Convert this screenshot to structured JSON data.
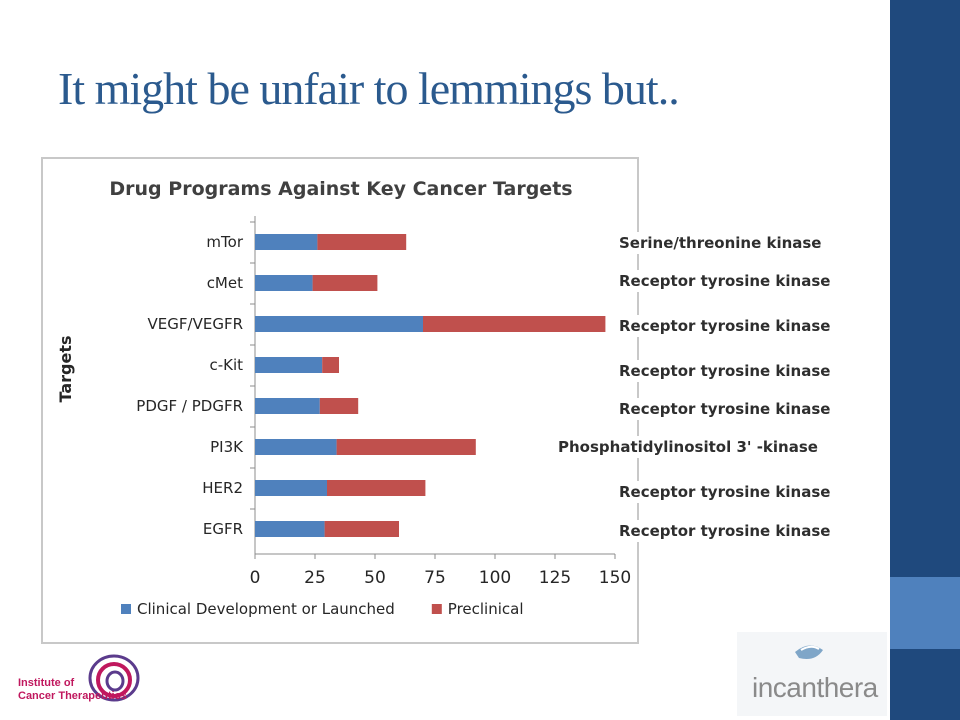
{
  "slide": {
    "title": "It might be unfair to lemmings but..",
    "annotations": [
      "Serine/threonine kinase",
      "Receptor tyrosine kinase",
      "Receptor tyrosine kinase",
      "Receptor tyrosine kinase",
      "Receptor tyrosine kinase",
      "Phosphatidylinositol 3' -kinase",
      "Receptor tyrosine kinase",
      "Receptor tyrosine kinase"
    ],
    "logo_left_lines": [
      "Institute of",
      "Cancer Therapeutics"
    ],
    "logo_right": "incanthera"
  },
  "colors": {
    "brand_dark": "#1f497d",
    "brand_light": "#4f81bd",
    "series_clinical": "#4f81bd",
    "series_preclinical": "#c0504d"
  },
  "chart_data": {
    "type": "bar",
    "orientation": "horizontal",
    "stacked": true,
    "title": "Drug Programs Against Key Cancer Targets",
    "xlabel": "",
    "ylabel": "Targets",
    "categories": [
      "mTor",
      "cMet",
      "VEGF/VEGFR",
      "c-Kit",
      "PDGF / PDGFR",
      "PI3K",
      "HER2",
      "EGFR"
    ],
    "series": [
      {
        "name": "Clinical Development or Launched",
        "values": [
          26,
          24,
          70,
          28,
          27,
          34,
          30,
          29
        ]
      },
      {
        "name": "Preclinical",
        "values": [
          37,
          27,
          76,
          7,
          16,
          58,
          41,
          31
        ]
      }
    ],
    "xlim": [
      0,
      150
    ],
    "xticks": [
      0,
      25,
      50,
      75,
      100,
      125,
      150
    ],
    "grid": false,
    "legend": "bottom"
  }
}
